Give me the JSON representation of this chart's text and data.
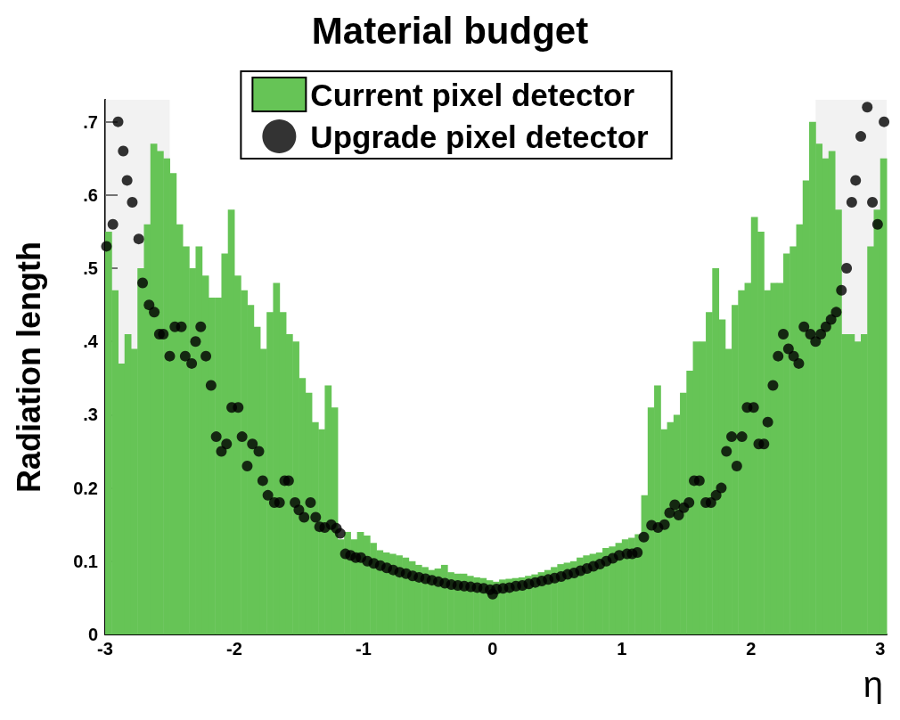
{
  "chart_data": {
    "type": "histogram",
    "title": "Material budget",
    "xlabel": "η",
    "ylabel": "Radiation length",
    "xlim": [
      -3,
      3.05
    ],
    "xticks": [
      -3,
      -2,
      -1,
      0,
      1,
      2,
      3
    ],
    "ylim": [
      0,
      0.73
    ],
    "yticks": [
      0,
      0.1,
      0.2,
      {
        "value": 0.3,
        "label": ".3"
      },
      {
        "value": 0.4,
        "label": ".4"
      },
      {
        "value": 0.5,
        "label": ".5"
      },
      {
        "value": 0.6,
        "label": ".6"
      },
      {
        "value": 0.7,
        "label": ".7"
      }
    ],
    "legend": "top",
    "bins": [
      -3,
      -2.95,
      -2.9,
      -2.85,
      -2.8,
      -2.75,
      -2.7,
      -2.65,
      -2.6,
      -2.55,
      -2.5,
      -2.45,
      -2.4,
      -2.35,
      -2.3,
      -2.25,
      -2.2,
      -2.15,
      -2.1,
      -2.05,
      -2,
      -1.95,
      -1.9,
      -1.85,
      -1.8,
      -1.75,
      -1.7,
      -1.65,
      -1.6,
      -1.55,
      -1.5,
      -1.45,
      -1.4,
      -1.35,
      -1.3,
      -1.25,
      -1.2,
      -1.15,
      -1.1,
      -1.05,
      -1,
      -0.95,
      -0.9,
      -0.85,
      -0.8,
      -0.75,
      -0.7,
      -0.65,
      -0.6,
      -0.55,
      -0.5,
      -0.45,
      -0.4,
      -0.35,
      -0.3,
      -0.25,
      -0.2,
      -0.15,
      -0.1,
      -0.05,
      0,
      0.05,
      0.1,
      0.15,
      0.2,
      0.25,
      0.3,
      0.35,
      0.4,
      0.45,
      0.5,
      0.55,
      0.6,
      0.65,
      0.7,
      0.75,
      0.8,
      0.85,
      0.9,
      0.95,
      1,
      1.05,
      1.1,
      1.15,
      1.2,
      1.25,
      1.3,
      1.35,
      1.4,
      1.45,
      1.5,
      1.55,
      1.6,
      1.65,
      1.7,
      1.75,
      1.8,
      1.85,
      1.9,
      1.95,
      2,
      2.05,
      2.1,
      2.15,
      2.2,
      2.25,
      2.3,
      2.35,
      2.4,
      2.45,
      2.5,
      2.55,
      2.6,
      2.65,
      2.7,
      2.75,
      2.8,
      2.85,
      2.9,
      2.95,
      3,
      3.05
    ],
    "bands": [
      {
        "axis": "x",
        "from": -3,
        "to": -2.5,
        "color": "#e6e6e6"
      },
      {
        "axis": "x",
        "from": 2.5,
        "to": 3.05,
        "color": "#e6e6e6"
      }
    ],
    "series": [
      {
        "name": "Current pixel detector",
        "type": "histogram",
        "color": "#66c456",
        "values": [
          0.55,
          0.47,
          0.37,
          0.41,
          0.39,
          0.5,
          0.56,
          0.67,
          0.66,
          0.65,
          0.63,
          0.56,
          0.53,
          0.5,
          0.53,
          0.49,
          0.46,
          0.46,
          0.52,
          0.58,
          0.49,
          0.47,
          0.45,
          0.42,
          0.39,
          0.44,
          0.48,
          0.44,
          0.41,
          0.4,
          0.35,
          0.33,
          0.29,
          0.28,
          0.34,
          0.31,
          0.13,
          0.14,
          0.13,
          0.14,
          0.135,
          0.125,
          0.115,
          0.112,
          0.11,
          0.108,
          0.105,
          0.1,
          0.095,
          0.092,
          0.088,
          0.09,
          0.095,
          0.085,
          0.083,
          0.083,
          0.08,
          0.078,
          0.077,
          0.074,
          0.072,
          0.075,
          0.076,
          0.077,
          0.078,
          0.08,
          0.082,
          0.085,
          0.088,
          0.092,
          0.096,
          0.098,
          0.1,
          0.105,
          0.108,
          0.11,
          0.112,
          0.118,
          0.12,
          0.125,
          0.13,
          0.132,
          0.137,
          0.19,
          0.31,
          0.34,
          0.28,
          0.29,
          0.3,
          0.33,
          0.36,
          0.4,
          0.4,
          0.44,
          0.5,
          0.43,
          0.39,
          0.45,
          0.47,
          0.48,
          0.57,
          0.55,
          0.47,
          0.48,
          0.48,
          0.52,
          0.53,
          0.56,
          0.62,
          0.7,
          0.67,
          0.65,
          0.66,
          0.58,
          0.41,
          0.41,
          0.4,
          0.41,
          0.53,
          0.58,
          0.65
        ]
      },
      {
        "name": "Upgrade pixel detector",
        "type": "scatter",
        "color": "#000000",
        "marker": "circle",
        "x": [
          -2.99,
          -2.94,
          -2.9,
          -2.86,
          -2.83,
          -2.79,
          -2.74,
          -2.71,
          -2.66,
          -2.62,
          -2.58,
          -2.55,
          -2.5,
          -2.46,
          -2.41,
          -2.38,
          -2.33,
          -2.3,
          -2.26,
          -2.22,
          -2.18,
          -2.14,
          -2.1,
          -2.06,
          -2.02,
          -1.97,
          -1.94,
          -1.9,
          -1.86,
          -1.81,
          -1.78,
          -1.74,
          -1.69,
          -1.65,
          -1.61,
          -1.58,
          -1.53,
          -1.5,
          -1.46,
          -1.41,
          -1.37,
          -1.34,
          -1.3,
          -1.25,
          -1.21,
          -1.18,
          -1.14,
          -1.1,
          -1.06,
          -1.02,
          -0.97,
          -0.92,
          -0.87,
          -0.82,
          -0.77,
          -0.72,
          -0.67,
          -0.62,
          -0.57,
          -0.52,
          -0.47,
          -0.42,
          -0.37,
          -0.32,
          -0.27,
          -0.22,
          -0.17,
          -0.12,
          -0.07,
          -0.02,
          0,
          0.03,
          0.08,
          0.13,
          0.18,
          0.23,
          0.28,
          0.33,
          0.38,
          0.43,
          0.48,
          0.53,
          0.58,
          0.63,
          0.68,
          0.73,
          0.78,
          0.83,
          0.88,
          0.93,
          0.98,
          1.04,
          1.08,
          1.12,
          1.17,
          1.23,
          1.28,
          1.33,
          1.37,
          1.41,
          1.44,
          1.48,
          1.52,
          1.56,
          1.6,
          1.65,
          1.69,
          1.73,
          1.77,
          1.81,
          1.85,
          1.89,
          1.93,
          1.97,
          2.02,
          2.06,
          2.1,
          2.13,
          2.17,
          2.21,
          2.25,
          2.29,
          2.33,
          2.37,
          2.41,
          2.46,
          2.5,
          2.54,
          2.58,
          2.62,
          2.66,
          2.7,
          2.74,
          2.78,
          2.81,
          2.85,
          2.9,
          2.94,
          2.98,
          3.03
        ],
        "values": [
          0.53,
          0.56,
          0.7,
          0.66,
          0.62,
          0.59,
          0.54,
          0.48,
          0.45,
          0.44,
          0.41,
          0.41,
          0.38,
          0.42,
          0.42,
          0.38,
          0.37,
          0.4,
          0.42,
          0.38,
          0.34,
          0.27,
          0.25,
          0.26,
          0.31,
          0.31,
          0.27,
          0.23,
          0.26,
          0.25,
          0.21,
          0.19,
          0.18,
          0.18,
          0.21,
          0.21,
          0.18,
          0.17,
          0.16,
          0.18,
          0.16,
          0.147,
          0.146,
          0.15,
          0.145,
          0.138,
          0.11,
          0.108,
          0.105,
          0.105,
          0.1,
          0.097,
          0.094,
          0.091,
          0.088,
          0.085,
          0.083,
          0.08,
          0.078,
          0.076,
          0.074,
          0.072,
          0.07,
          0.068,
          0.067,
          0.066,
          0.065,
          0.064,
          0.063,
          0.061,
          0.055,
          0.062,
          0.063,
          0.064,
          0.066,
          0.067,
          0.069,
          0.071,
          0.073,
          0.075,
          0.077,
          0.079,
          0.082,
          0.084,
          0.087,
          0.09,
          0.093,
          0.096,
          0.1,
          0.104,
          0.108,
          0.11,
          0.11,
          0.112,
          0.133,
          0.149,
          0.146,
          0.15,
          0.166,
          0.177,
          0.163,
          0.173,
          0.18,
          0.21,
          0.21,
          0.18,
          0.18,
          0.19,
          0.2,
          0.25,
          0.27,
          0.23,
          0.27,
          0.31,
          0.31,
          0.26,
          0.26,
          0.29,
          0.34,
          0.38,
          0.41,
          0.39,
          0.38,
          0.37,
          0.42,
          0.41,
          0.4,
          0.41,
          0.42,
          0.43,
          0.44,
          0.47,
          0.5,
          0.59,
          0.62,
          0.68,
          0.72,
          0.59,
          0.56,
          0.7
        ]
      }
    ]
  }
}
